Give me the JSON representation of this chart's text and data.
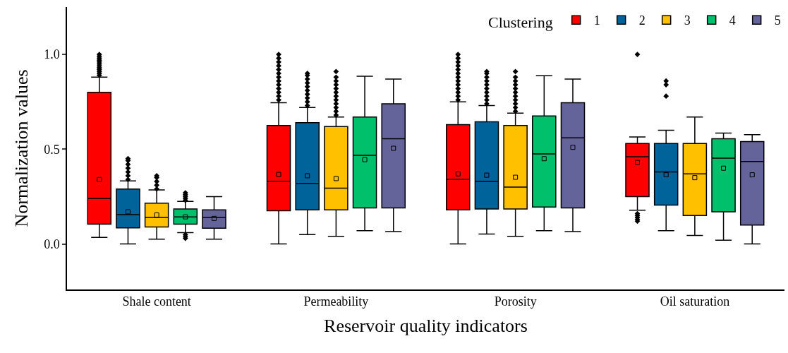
{
  "chart_data": {
    "type": "box",
    "xlabel": "Reservoir quality indicators",
    "ylabel": "Normalization values",
    "legend_title": "Clustering",
    "legend": "top right",
    "categories": [
      "Shale content",
      "Permeability",
      "Porosity",
      "Oil saturation"
    ],
    "ylim": [
      -0.24,
      1.25
    ],
    "yticks": [
      {
        "value": 0,
        "label": "0.0"
      },
      {
        "value": 0.5,
        "label": "0.5"
      },
      {
        "value": 1,
        "label": "1.0"
      }
    ],
    "series": [
      {
        "name": "1",
        "color": "#ff0000",
        "boxes": [
          {
            "low": 0.035,
            "q1": 0.105,
            "median": 0.24,
            "q3": 0.8,
            "high": 0.88,
            "mean": 0.34,
            "outliers": [
              0.89,
              0.9,
              0.91,
              0.92,
              0.93,
              0.94,
              0.95,
              0.96,
              0.97,
              0.98,
              0.99,
              1.0
            ]
          },
          {
            "low": 0.0,
            "q1": 0.175,
            "median": 0.33,
            "q3": 0.625,
            "high": 0.745,
            "mean": 0.367,
            "outliers": [
              0.76,
              0.78,
              0.8,
              0.82,
              0.84,
              0.86,
              0.88,
              0.9,
              0.92,
              0.94,
              0.96,
              0.98,
              1.0
            ]
          },
          {
            "low": 0.0,
            "q1": 0.18,
            "median": 0.34,
            "q3": 0.63,
            "high": 0.75,
            "mean": 0.37,
            "outliers": [
              0.76,
              0.78,
              0.8,
              0.82,
              0.84,
              0.86,
              0.88,
              0.9,
              0.92,
              0.94,
              0.96,
              0.98,
              1.0
            ]
          },
          {
            "low": 0.178,
            "q1": 0.25,
            "median": 0.46,
            "q3": 0.53,
            "high": 0.565,
            "mean": 0.43,
            "outliers": [
              0.12,
              0.13,
              0.14,
              0.15,
              0.16,
              1.0
            ]
          }
        ]
      },
      {
        "name": "2",
        "color": "#00639a",
        "boxes": [
          {
            "low": 0.0,
            "q1": 0.085,
            "median": 0.155,
            "q3": 0.29,
            "high": 0.333,
            "mean": 0.17,
            "outliers": [
              0.34,
              0.36,
              0.38,
              0.4,
              0.42,
              0.44,
              0.45
            ]
          },
          {
            "low": 0.05,
            "q1": 0.18,
            "median": 0.32,
            "q3": 0.64,
            "high": 0.72,
            "mean": 0.36,
            "outliers": [
              0.73,
              0.75,
              0.77,
              0.79,
              0.81,
              0.83,
              0.85,
              0.87,
              0.89,
              0.9
            ]
          },
          {
            "low": 0.052,
            "q1": 0.185,
            "median": 0.33,
            "q3": 0.645,
            "high": 0.73,
            "mean": 0.363,
            "outliers": [
              0.74,
              0.76,
              0.78,
              0.8,
              0.82,
              0.84,
              0.86,
              0.88,
              0.9,
              0.91
            ]
          },
          {
            "low": 0.07,
            "q1": 0.205,
            "median": 0.38,
            "q3": 0.53,
            "high": 0.6,
            "mean": 0.365,
            "outliers": [
              0.78,
              0.84,
              0.86
            ]
          }
        ]
      },
      {
        "name": "3",
        "color": "#ffc000",
        "boxes": [
          {
            "low": 0.025,
            "q1": 0.09,
            "median": 0.14,
            "q3": 0.215,
            "high": 0.285,
            "mean": 0.153,
            "outliers": [
              0.29,
              0.31,
              0.33,
              0.35,
              0.36
            ]
          },
          {
            "low": 0.04,
            "q1": 0.18,
            "median": 0.295,
            "q3": 0.62,
            "high": 0.67,
            "mean": 0.345,
            "outliers": [
              0.68,
              0.7,
              0.72,
              0.74,
              0.76,
              0.78,
              0.8,
              0.82,
              0.84,
              0.86,
              0.88,
              0.91
            ]
          },
          {
            "low": 0.04,
            "q1": 0.185,
            "median": 0.3,
            "q3": 0.625,
            "high": 0.69,
            "mean": 0.352,
            "outliers": [
              0.7,
              0.72,
              0.74,
              0.76,
              0.78,
              0.8,
              0.82,
              0.84,
              0.86,
              0.88,
              0.91
            ]
          },
          {
            "low": 0.045,
            "q1": 0.15,
            "median": 0.37,
            "q3": 0.53,
            "high": 0.67,
            "mean": 0.35
          }
        ]
      },
      {
        "name": "4",
        "color": "#00c06b",
        "boxes": [
          {
            "low": 0.06,
            "q1": 0.105,
            "median": 0.143,
            "q3": 0.185,
            "high": 0.225,
            "mean": 0.143,
            "outliers": [
              0.03,
              0.04,
              0.05,
              0.23,
              0.24,
              0.25,
              0.26,
              0.27
            ]
          },
          {
            "low": 0.07,
            "q1": 0.19,
            "median": 0.468,
            "q3": 0.67,
            "high": 0.885,
            "mean": 0.445
          },
          {
            "low": 0.07,
            "q1": 0.195,
            "median": 0.475,
            "q3": 0.675,
            "high": 0.888,
            "mean": 0.45
          },
          {
            "low": 0.02,
            "q1": 0.17,
            "median": 0.453,
            "q3": 0.555,
            "high": 0.585,
            "mean": 0.4
          }
        ]
      },
      {
        "name": "5",
        "color": "#64639a",
        "boxes": [
          {
            "low": 0.025,
            "q1": 0.083,
            "median": 0.14,
            "q3": 0.18,
            "high": 0.25,
            "mean": 0.135
          },
          {
            "low": 0.065,
            "q1": 0.19,
            "median": 0.555,
            "q3": 0.74,
            "high": 0.87,
            "mean": 0.505
          },
          {
            "low": 0.065,
            "q1": 0.19,
            "median": 0.56,
            "q3": 0.745,
            "high": 0.87,
            "mean": 0.51
          },
          {
            "low": 0.0,
            "q1": 0.1,
            "median": 0.435,
            "q3": 0.54,
            "high": 0.577,
            "mean": 0.365
          }
        ]
      }
    ]
  }
}
